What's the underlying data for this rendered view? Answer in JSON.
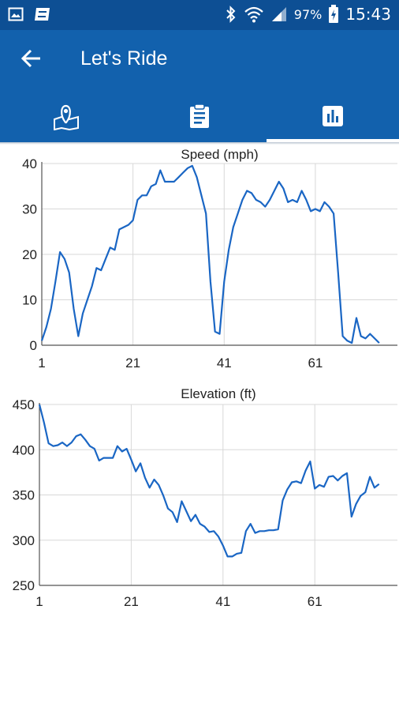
{
  "status_bar": {
    "icons_left": [
      "image-icon",
      "app-notification-icon"
    ],
    "icons_right": [
      "bluetooth-icon",
      "wifi-icon",
      "cell-signal-icon",
      "battery-charging-icon"
    ],
    "battery_percent": "97%",
    "time": "15:43"
  },
  "app_bar": {
    "back_icon": "arrow-back-icon",
    "title": "Let's Ride"
  },
  "tabs": [
    {
      "icon": "map-pin-icon",
      "selected": false
    },
    {
      "icon": "clipboard-icon",
      "selected": false
    },
    {
      "icon": "bar-chart-icon",
      "selected": true
    }
  ],
  "colors": {
    "status_bar": "#0d4f94",
    "app_bar": "#1261ad",
    "line": "#1a66c4",
    "grid": "#d8d8d8"
  },
  "chart_data": [
    {
      "type": "line",
      "title": "Speed (mph)",
      "xlabel": "",
      "ylabel": "",
      "x_ticks": [
        "1",
        "21",
        "41",
        "61"
      ],
      "y_ticks": [
        "0",
        "10",
        "20",
        "30",
        "40"
      ],
      "xlim": [
        1,
        79
      ],
      "ylim": [
        0,
        40
      ],
      "grid": true,
      "series": [
        {
          "values": [
            1,
            4,
            8,
            14,
            20.5,
            19,
            16,
            8,
            2,
            7,
            10,
            13,
            17,
            16.5,
            19,
            21.5,
            21,
            25.5,
            26,
            26.5,
            27.5,
            32,
            33,
            33,
            35,
            35.5,
            38.5,
            36,
            36,
            36,
            37,
            38,
            39,
            39.5,
            37,
            33,
            29,
            14,
            3,
            2.5,
            14,
            21,
            26,
            29,
            32,
            34,
            33.5,
            32,
            31.5,
            30.5,
            32,
            34,
            36,
            34.5,
            31.5,
            32,
            31.5,
            34,
            32,
            29.5,
            30,
            29.5,
            31.5,
            30.5,
            29,
            16,
            2,
            1,
            0.5,
            6,
            2,
            1.5,
            2.5,
            1.5,
            0.5
          ]
        }
      ]
    },
    {
      "type": "line",
      "title": "Elevation (ft)",
      "xlabel": "",
      "ylabel": "",
      "x_ticks": [
        "1",
        "21",
        "41",
        "61"
      ],
      "y_ticks": [
        "250",
        "300",
        "350",
        "400",
        "450"
      ],
      "xlim": [
        1,
        79
      ],
      "ylim": [
        250,
        450
      ],
      "grid": true,
      "series": [
        {
          "values": [
            450,
            430,
            407,
            404,
            405,
            408,
            404,
            408,
            415,
            417,
            411,
            404,
            401,
            388,
            391,
            391,
            391,
            404,
            398,
            401,
            389,
            376,
            385,
            369,
            358,
            367,
            361,
            349,
            335,
            331,
            320,
            343,
            332,
            321,
            328,
            318,
            315,
            309,
            310,
            304,
            294,
            282,
            282,
            285,
            286,
            310,
            318,
            308,
            310,
            310,
            311,
            311,
            312,
            344,
            356,
            364,
            365,
            363,
            377,
            387,
            357,
            361,
            359,
            370,
            371,
            366,
            371,
            374,
            326,
            340,
            349,
            353,
            370,
            358,
            362
          ]
        }
      ]
    }
  ]
}
